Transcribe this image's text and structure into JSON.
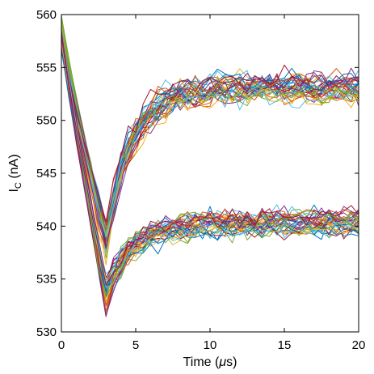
{
  "chart_data": {
    "type": "line",
    "title": "",
    "xlabel": {
      "prefix": "Time (",
      "symbol": "μ",
      "suffix": "s)"
    },
    "ylabel": {
      "main": "I",
      "sub": "C",
      "unit": " (nA)"
    },
    "xlim": [
      0,
      20
    ],
    "ylim": [
      530,
      560
    ],
    "xticks": [
      "0",
      "5",
      "10",
      "15",
      "20"
    ],
    "yticks": [
      "530",
      "535",
      "540",
      "545",
      "550",
      "555",
      "560"
    ],
    "grid": false,
    "legend": "none",
    "colors": [
      "#0072BD",
      "#D95319",
      "#EDB120",
      "#7E2F8E",
      "#77AC30",
      "#4DBEEE",
      "#A2142F"
    ],
    "groups": [
      {
        "name": "",
        "series_count": 35,
        "start": 558.5,
        "minimum_at_x": 3,
        "minimum_y": 538.5,
        "plateau_y": 553,
        "noise_amplitude": 1.2
      },
      {
        "name": "",
        "series_count": 35,
        "start": 558.0,
        "minimum_at_x": 3,
        "minimum_y": 533.5,
        "plateau_y": 540.2,
        "noise_amplitude": 1.1
      }
    ],
    "x_step": 0.5
  }
}
